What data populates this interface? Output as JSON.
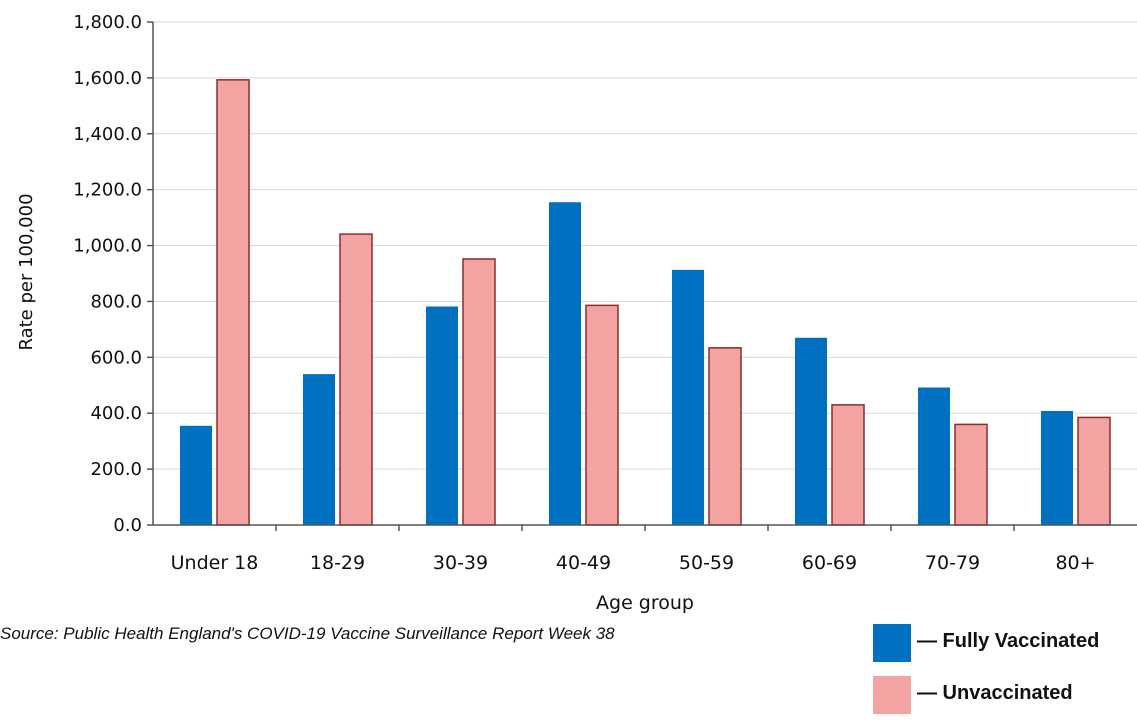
{
  "colors": {
    "fully_vaccinated_fill": "#0070C0",
    "unvaccinated_fill": "#F4A3A3",
    "unvaccinated_stroke": "#8B2D2D",
    "axis": "#555555",
    "grid": "#D9D9D9",
    "text": "#111111"
  },
  "source": "Source: Public Health England's COVID-19 Vaccine Surveillance Report Week 38",
  "legend": {
    "fully_vaccinated": "— Fully Vaccinated",
    "unvaccinated": "— Unvaccinated"
  },
  "chart_data": {
    "type": "bar",
    "title": "",
    "xlabel": "Age group",
    "ylabel": "Rate per 100,000",
    "ylim": [
      0,
      1800
    ],
    "yticks": [
      0,
      200,
      400,
      600,
      800,
      1000,
      1200,
      1400,
      1600,
      1800
    ],
    "ytick_labels": [
      "0.0",
      "200.0",
      "400.0",
      "600.0",
      "800.0",
      "1,000.0",
      "1,200.0",
      "1,400.0",
      "1,600.0",
      "1,800.0"
    ],
    "grid": true,
    "legend_position": "bottom-right",
    "categories": [
      "Under 18",
      "18-29",
      "30-39",
      "40-49",
      "50-59",
      "60-69",
      "70-79",
      "80+"
    ],
    "series": [
      {
        "name": "Fully Vaccinated",
        "values": [
          355,
          540,
          782,
          1155,
          913,
          670,
          492,
          408
        ]
      },
      {
        "name": "Unvaccinated",
        "values": [
          1593,
          1041,
          952,
          786,
          634,
          430,
          360,
          385
        ]
      }
    ]
  }
}
